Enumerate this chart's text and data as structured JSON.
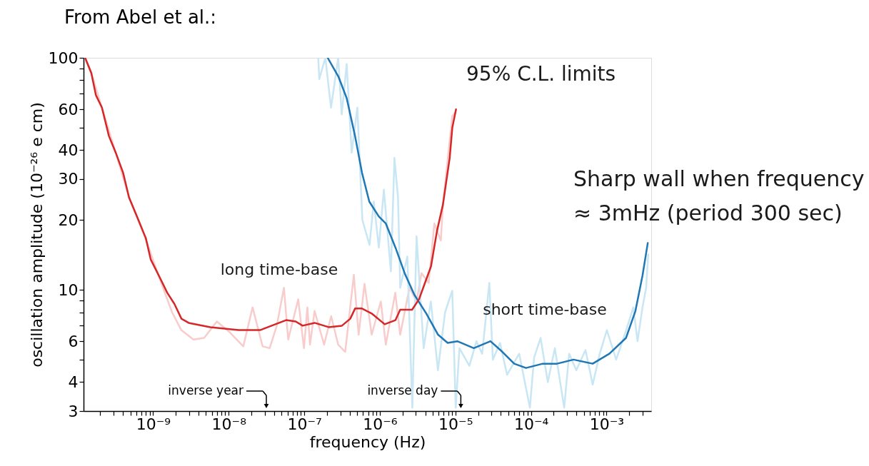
{
  "chart_data": {
    "type": "line",
    "title": "From Abel et al.:",
    "xlabel": "frequency (Hz)",
    "ylabel": "oscillation amplitude (10⁻²⁶ e cm)",
    "log": "xy",
    "line_style": "solid",
    "xlim": [
      1.2e-10,
      0.0039
    ],
    "ylim": [
      3,
      100
    ],
    "xticks": [
      {
        "value": 2e-10,
        "label": null
      },
      {
        "value": 3e-10,
        "label": null
      },
      {
        "value": 4e-10,
        "label": null
      },
      {
        "value": 5e-10,
        "label": null
      },
      {
        "value": 6e-10,
        "label": null
      },
      {
        "value": 7e-10,
        "label": null
      },
      {
        "value": 8e-10,
        "label": null
      },
      {
        "value": 9e-10,
        "label": null
      },
      {
        "value": 1e-09,
        "label": "10⁻⁹"
      },
      {
        "value": 2e-09,
        "label": null
      },
      {
        "value": 3e-09,
        "label": null
      },
      {
        "value": 4e-09,
        "label": null
      },
      {
        "value": 5e-09,
        "label": null
      },
      {
        "value": 6e-09,
        "label": null
      },
      {
        "value": 7e-09,
        "label": null
      },
      {
        "value": 8e-09,
        "label": null
      },
      {
        "value": 9e-09,
        "label": null
      },
      {
        "value": 1e-08,
        "label": "10⁻⁸"
      },
      {
        "value": 2e-08,
        "label": null
      },
      {
        "value": 3e-08,
        "label": null
      },
      {
        "value": 4e-08,
        "label": null
      },
      {
        "value": 5e-08,
        "label": null
      },
      {
        "value": 6e-08,
        "label": null
      },
      {
        "value": 7e-08,
        "label": null
      },
      {
        "value": 8e-08,
        "label": null
      },
      {
        "value": 9e-08,
        "label": null
      },
      {
        "value": 1e-07,
        "label": "10⁻⁷"
      },
      {
        "value": 2e-07,
        "label": null
      },
      {
        "value": 3e-07,
        "label": null
      },
      {
        "value": 4e-07,
        "label": null
      },
      {
        "value": 5e-07,
        "label": null
      },
      {
        "value": 6e-07,
        "label": null
      },
      {
        "value": 7e-07,
        "label": null
      },
      {
        "value": 8e-07,
        "label": null
      },
      {
        "value": 9e-07,
        "label": null
      },
      {
        "value": 1e-06,
        "label": "10⁻⁶"
      },
      {
        "value": 2e-06,
        "label": null
      },
      {
        "value": 3e-06,
        "label": null
      },
      {
        "value": 4e-06,
        "label": null
      },
      {
        "value": 5e-06,
        "label": null
      },
      {
        "value": 6e-06,
        "label": null
      },
      {
        "value": 7e-06,
        "label": null
      },
      {
        "value": 8e-06,
        "label": null
      },
      {
        "value": 9e-06,
        "label": null
      },
      {
        "value": 1e-05,
        "label": "10⁻⁵"
      },
      {
        "value": 2e-05,
        "label": null
      },
      {
        "value": 3e-05,
        "label": null
      },
      {
        "value": 4e-05,
        "label": null
      },
      {
        "value": 5e-05,
        "label": null
      },
      {
        "value": 6e-05,
        "label": null
      },
      {
        "value": 7e-05,
        "label": null
      },
      {
        "value": 8e-05,
        "label": null
      },
      {
        "value": 9e-05,
        "label": null
      },
      {
        "value": 0.0001,
        "label": "10⁻⁴"
      },
      {
        "value": 0.0002,
        "label": null
      },
      {
        "value": 0.0003,
        "label": null
      },
      {
        "value": 0.0004,
        "label": null
      },
      {
        "value": 0.0005,
        "label": null
      },
      {
        "value": 0.0006,
        "label": null
      },
      {
        "value": 0.0007,
        "label": null
      },
      {
        "value": 0.0008,
        "label": null
      },
      {
        "value": 0.0009,
        "label": null
      },
      {
        "value": 0.001,
        "label": "10⁻³"
      },
      {
        "value": 0.002,
        "label": null
      },
      {
        "value": 0.003,
        "label": null
      }
    ],
    "yticks": [
      3,
      4,
      {
        "value": 5,
        "label": null
      },
      6,
      {
        "value": 7,
        "label": null
      },
      {
        "value": 8,
        "label": null
      },
      {
        "value": 9,
        "label": null
      },
      10,
      20,
      30,
      40,
      {
        "value": 50,
        "label": null
      },
      60,
      {
        "value": 70,
        "label": null
      },
      {
        "value": 80,
        "label": null
      },
      {
        "value": 90,
        "label": null
      },
      100
    ],
    "series": [
      {
        "color": "#f9cccc",
        "x": [
          1.26e-10,
          1.52e-10,
          2.1e-10,
          3.2e-10,
          4.8e-10,
          8e-10,
          1.24e-09,
          1.78e-09,
          2.36e-09,
          3.41e-09,
          4.73e-09,
          6.98e-09,
          1.01e-08,
          1.56e-08,
          2.07e-08,
          2.81e-08,
          3.48e-08,
          4.33e-08,
          5.38e-08,
          6.13e-08,
          8.32e-08,
          9.9e-08,
          1.1e-07,
          1.19e-07,
          1.37e-07,
          1.83e-07,
          2.27e-07,
          2.81e-07,
          3.48e-07,
          4.53e-07,
          5.24e-07,
          6.27e-07,
          7.8e-07,
          1.03e-06,
          1.2e-06,
          1.6e-06,
          1.86e-06,
          2.47e-06,
          3.06e-06,
          3.56e-06,
          4.43e-06,
          5.27e-06,
          6.41e-06,
          6.84e-06,
          9.08e-06,
          9.9e-06
        ],
        "values": [
          100,
          86,
          61,
          39,
          25,
          16.5,
          11,
          8.0,
          6.7,
          6.1,
          6.2,
          7.3,
          6.6,
          5.7,
          8.4,
          5.7,
          5.6,
          7.0,
          10.2,
          6.1,
          9.1,
          5.6,
          8.4,
          5.8,
          8.1,
          5.8,
          7.7,
          5.8,
          5.4,
          11.6,
          6.4,
          10.6,
          6.4,
          8.9,
          5.8,
          9.7,
          6.4,
          10.2,
          8.9,
          11.8,
          10.7,
          19.3,
          16.3,
          23.3,
          56,
          58
        ]
      },
      {
        "color": "#c8e6f4",
        "x": [
          1.53e-07,
          1.58e-07,
          1.9e-07,
          2.26e-07,
          2.81e-07,
          3.13e-07,
          3.64e-07,
          4.24e-07,
          5.04e-07,
          5.87e-07,
          7.3e-07,
          8.31e-07,
          9.7e-07,
          1.13e-06,
          1.4e-06,
          1.56e-06,
          1.74e-06,
          1.86e-06,
          2.31e-06,
          2.69e-06,
          3.06e-06,
          3.8e-06,
          4.73e-06,
          5.87e-06,
          7.3e-06,
          9.08e-06,
          1.01e-05,
          1.13e-05,
          1.53e-05,
          1.9e-05,
          2.26e-05,
          2.81e-05,
          3.13e-05,
          3.89e-05,
          4.83e-05,
          6.98e-05,
          9.68e-05,
          0.00011,
          0.000134,
          0.000167,
          0.000207,
          0.000275,
          0.00032,
          0.000398,
          0.000527,
          0.000655,
          0.000813,
          0.00101,
          0.00134,
          0.00182,
          0.00226,
          0.00257,
          0.00299,
          0.00334,
          0.00356
        ],
        "values": [
          100,
          81,
          100,
          61,
          100,
          57,
          94,
          39,
          61,
          20,
          15.6,
          24,
          15.2,
          27,
          12,
          37,
          25,
          10.2,
          13.9,
          3.1,
          17,
          5.6,
          8.9,
          4.5,
          8.0,
          9.9,
          3.1,
          5.6,
          4.7,
          6.0,
          5.3,
          10.7,
          5.0,
          5.9,
          4.3,
          5.3,
          3.1,
          5.1,
          6.2,
          4.0,
          5.6,
          3.1,
          5.3,
          4.5,
          5.5,
          3.9,
          5.3,
          6.7,
          5.0,
          6.7,
          8.4,
          6.0,
          8.4,
          10.2,
          14.2
        ]
      },
      {
        "color": "#1f77b4",
        "x": [
          2.04e-07,
          2.83e-07,
          3.64e-07,
          4.7e-07,
          5.8e-07,
          7.25e-07,
          9.7e-07,
          1.2e-06,
          1.61e-06,
          2.15e-06,
          2.87e-06,
          4.12e-06,
          5.9e-06,
          7.9e-06,
          1.06e-05,
          1.75e-05,
          2.91e-05,
          4.18e-05,
          6e-05,
          8.6e-05,
          0.000143,
          0.000221,
          0.000366,
          0.000655,
          0.00109,
          0.00181,
          0.00241,
          0.00299,
          0.00351
        ],
        "values": [
          100,
          83,
          67,
          46,
          32,
          24,
          20.7,
          19.3,
          15.2,
          11.7,
          9.5,
          7.9,
          6.4,
          5.9,
          6.0,
          5.6,
          6.0,
          5.4,
          4.8,
          4.6,
          4.8,
          4.8,
          5.0,
          4.8,
          5.3,
          6.2,
          8.1,
          11.5,
          15.9
        ]
      },
      {
        "color": "#d62728",
        "x": [
          1.26e-10,
          1.52e-10,
          1.75e-10,
          2.1e-10,
          2.6e-10,
          3.2e-10,
          4e-10,
          4.8e-10,
          6e-10,
          8e-10,
          9.3e-10,
          1.24e-09,
          1.54e-09,
          1.91e-09,
          2.37e-09,
          2.95e-09,
          5.7e-09,
          1.35e-08,
          2.6e-08,
          3.7e-08,
          5.75e-08,
          7.7e-08,
          9.5e-08,
          1.37e-07,
          2.1e-07,
          3.15e-07,
          4.06e-07,
          4.7e-07,
          5.8e-07,
          7.8e-07,
          1.16e-06,
          1.61e-06,
          1.86e-06,
          2.67e-06,
          3.3e-06,
          3.83e-06,
          4.75e-06,
          5.7e-06,
          6.84e-06,
          8.4e-06,
          9.1e-06,
          1.02e-05
        ],
        "values": [
          100,
          86,
          69,
          61,
          46,
          39,
          32,
          25,
          21,
          16.7,
          13.5,
          11.2,
          9.7,
          8.7,
          7.5,
          7.2,
          6.9,
          6.7,
          6.7,
          7.0,
          7.4,
          7.3,
          7.0,
          7.2,
          6.9,
          7.0,
          7.5,
          8.3,
          8.3,
          7.9,
          7.1,
          7.4,
          8.2,
          8.2,
          9.1,
          10.4,
          12.6,
          17.9,
          23.3,
          37,
          50,
          60
        ]
      }
    ],
    "annotations": [
      "95% C.L. limits",
      "Sharp wall when frequency\n≈ 3mHz (period 300 sec)",
      "long time-base",
      "short time-base",
      "inverse year",
      {
        "text": "inverse day",
        "x": 1.18e-05
      }
    ]
  }
}
